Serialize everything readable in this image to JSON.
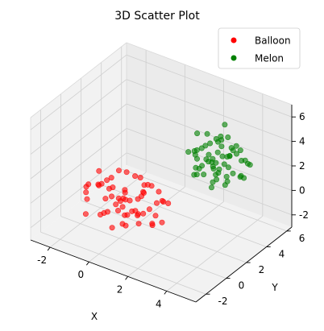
{
  "chart_data": {
    "type": "scatter",
    "projection": "3d",
    "title": "3D Scatter Plot",
    "xlabel": "X",
    "ylabel": "Y",
    "zlabel": "",
    "xlim": [
      -3,
      5.5
    ],
    "ylim": [
      -3,
      6.5
    ],
    "zlim": [
      -3,
      7
    ],
    "xticks": [
      "-2",
      "0",
      "2",
      "4"
    ],
    "yticks": [
      "-2",
      "0",
      "2",
      "4",
      "6"
    ],
    "zticks": [
      "-2",
      "0",
      "2",
      "4",
      "6"
    ],
    "grid": true,
    "legend_position": "top-right",
    "series": [
      {
        "name": "Balloon",
        "color": "#ff0000",
        "points": [
          [
            -1.2,
            0.3,
            0.4
          ],
          [
            0.2,
            -0.5,
            -0.3
          ],
          [
            0.8,
            0.9,
            0.6
          ],
          [
            -0.3,
            1.2,
            -0.8
          ],
          [
            1.5,
            0.1,
            0.2
          ],
          [
            0.5,
            -1.3,
            0.9
          ],
          [
            -0.8,
            -0.2,
            1.1
          ],
          [
            1.1,
            1.6,
            -0.5
          ],
          [
            0.0,
            0.4,
            0.0
          ],
          [
            -1.6,
            1.0,
            -0.2
          ],
          [
            0.7,
            -0.7,
            -1.1
          ],
          [
            1.9,
            0.6,
            0.8
          ],
          [
            -0.4,
            -1.1,
            -0.6
          ],
          [
            0.3,
            1.9,
            0.3
          ],
          [
            1.3,
            -0.3,
            1.4
          ],
          [
            -1.0,
            0.7,
            0.7
          ],
          [
            0.9,
            0.2,
            -1.4
          ],
          [
            -0.1,
            -0.8,
            1.5
          ],
          [
            1.6,
            1.3,
            0.1
          ],
          [
            -0.6,
            0.0,
            -1.2
          ],
          [
            0.4,
            0.8,
            1.8
          ],
          [
            -1.4,
            -0.6,
            0.3
          ],
          [
            1.0,
            -1.6,
            -0.2
          ],
          [
            0.1,
            1.4,
            -1.6
          ],
          [
            2.2,
            0.0,
            -0.4
          ],
          [
            -0.9,
            1.7,
            0.9
          ],
          [
            0.6,
            -0.1,
            0.5
          ],
          [
            -0.2,
            0.5,
            -0.4
          ],
          [
            1.4,
            0.9,
            -0.9
          ],
          [
            -1.8,
            0.2,
            0.0
          ],
          [
            0.2,
            -1.9,
            0.4
          ],
          [
            0.9,
            1.1,
            1.2
          ],
          [
            -0.5,
            -0.4,
            0.2
          ],
          [
            1.7,
            -0.9,
            0.6
          ],
          [
            -0.7,
            1.3,
            -1.0
          ],
          [
            0.5,
            0.3,
            -0.7
          ],
          [
            1.2,
            -0.5,
            -0.1
          ],
          [
            -1.1,
            -1.2,
            -0.9
          ],
          [
            0.0,
            2.1,
            0.6
          ],
          [
            2.0,
            1.0,
            0.4
          ],
          [
            -0.3,
            -0.2,
            1.9
          ],
          [
            0.8,
            -1.0,
            0.0
          ],
          [
            -1.3,
            0.5,
            1.4
          ],
          [
            1.5,
            0.4,
            -1.3
          ],
          [
            0.3,
            0.0,
            0.9
          ],
          [
            -0.8,
            0.9,
            0.1
          ],
          [
            1.1,
            1.8,
            0.3
          ],
          [
            0.6,
            -0.6,
            1.7
          ],
          [
            -0.1,
            1.0,
            -1.8
          ],
          [
            1.8,
            -0.2,
            -0.6
          ],
          [
            -1.5,
            -0.3,
            -0.5
          ],
          [
            0.4,
            1.6,
            0.0
          ],
          [
            0.9,
            -1.4,
            1.0
          ],
          [
            -0.6,
            0.4,
            -0.2
          ],
          [
            1.3,
            0.7,
            1.6
          ],
          [
            -2.0,
            0.8,
            -0.3
          ],
          [
            0.1,
            -0.9,
            -1.5
          ],
          [
            0.7,
            0.5,
            0.3
          ],
          [
            -0.4,
            1.5,
            1.2
          ],
          [
            1.6,
            -1.2,
            0.7
          ]
        ]
      },
      {
        "name": "Melon",
        "color": "#008000",
        "points": [
          [
            3.2,
            3.1,
            3.4
          ],
          [
            2.5,
            2.6,
            2.0
          ],
          [
            3.8,
            3.5,
            2.8
          ],
          [
            2.9,
            4.2,
            3.9
          ],
          [
            4.1,
            2.8,
            4.3
          ],
          [
            3.5,
            3.9,
            1.6
          ],
          [
            2.2,
            3.3,
            3.0
          ],
          [
            4.4,
            3.6,
            2.4
          ],
          [
            3.0,
            2.4,
            4.6
          ],
          [
            3.7,
            4.5,
            3.2
          ],
          [
            2.7,
            3.0,
            2.6
          ],
          [
            4.0,
            2.2,
            3.6
          ],
          [
            3.3,
            3.7,
            4.9
          ],
          [
            2.4,
            4.0,
            2.3
          ],
          [
            3.9,
            3.2,
            1.9
          ],
          [
            3.1,
            2.9,
            3.8
          ],
          [
            4.6,
            4.1,
            3.1
          ],
          [
            2.8,
            3.6,
            4.1
          ],
          [
            3.6,
            2.7,
            2.2
          ],
          [
            3.4,
            4.4,
            2.9
          ],
          [
            2.1,
            2.8,
            3.5
          ],
          [
            4.3,
            3.0,
            4.8
          ],
          [
            3.0,
            3.8,
            2.5
          ],
          [
            3.8,
            2.5,
            3.0
          ],
          [
            2.6,
            4.6,
            3.7
          ],
          [
            4.2,
            3.9,
            2.0
          ],
          [
            3.2,
            2.2,
            2.7
          ],
          [
            3.5,
            3.4,
            4.4
          ],
          [
            2.3,
            3.5,
            1.8
          ],
          [
            4.5,
            2.6,
            3.3
          ],
          [
            3.1,
            4.8,
            4.0
          ],
          [
            3.7,
            3.0,
            5.3
          ],
          [
            2.9,
            2.0,
            3.2
          ],
          [
            4.0,
            4.3,
            3.8
          ],
          [
            3.3,
            3.2,
            2.1
          ],
          [
            2.5,
            3.9,
            4.5
          ],
          [
            3.9,
            2.9,
            3.5
          ],
          [
            3.0,
            3.4,
            2.8
          ],
          [
            4.7,
            3.3,
            2.6
          ],
          [
            2.7,
            2.5,
            4.2
          ],
          [
            3.6,
            4.0,
            3.3
          ],
          [
            3.4,
            2.6,
            1.5
          ],
          [
            2.2,
            4.3,
            3.1
          ],
          [
            4.1,
            3.7,
            4.6
          ],
          [
            3.2,
            3.6,
            3.6
          ],
          [
            2.8,
            2.3,
            2.4
          ],
          [
            3.9,
            4.6,
            2.7
          ],
          [
            3.5,
            2.1,
            4.0
          ],
          [
            2.4,
            3.1,
            5.0
          ],
          [
            4.4,
            4.0,
            3.4
          ],
          [
            3.1,
            3.3,
            1.3
          ],
          [
            3.8,
            3.8,
            4.2
          ],
          [
            2.6,
            2.7,
            3.3
          ],
          [
            4.2,
            2.4,
            2.3
          ],
          [
            3.3,
            4.1,
            5.6
          ],
          [
            2.9,
            3.7,
            2.2
          ],
          [
            3.7,
            3.1,
            3.9
          ],
          [
            2.0,
            3.6,
            3.0
          ],
          [
            4.8,
            3.5,
            3.7
          ],
          [
            3.4,
            2.8,
            2.9
          ]
        ]
      }
    ]
  }
}
